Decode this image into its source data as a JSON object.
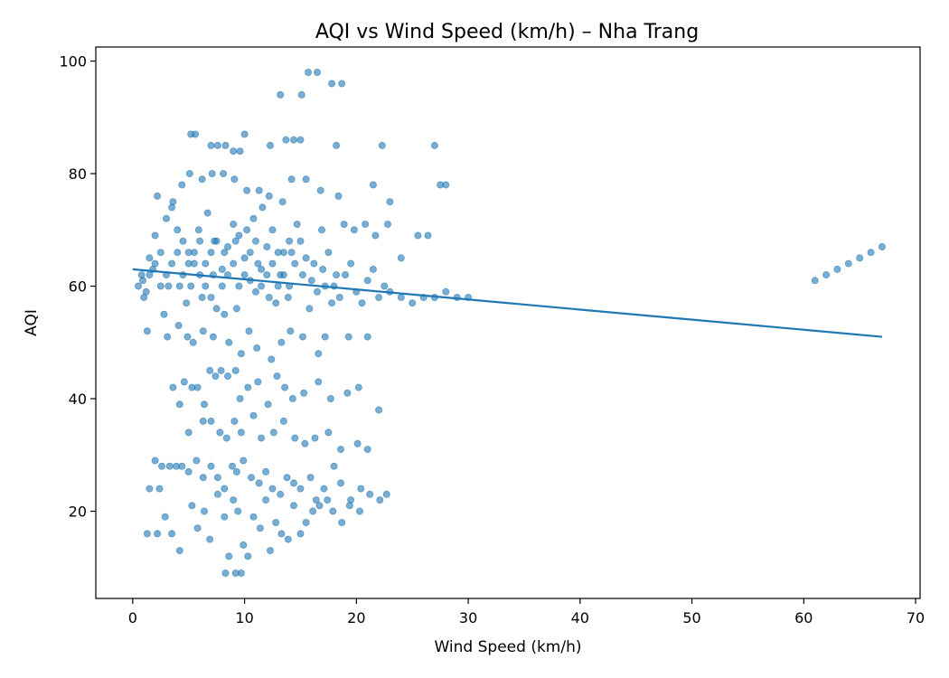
{
  "chart_data": {
    "type": "scatter",
    "title": "AQI vs Wind Speed (km/h) – Nha Trang",
    "xlabel": "Wind Speed (km/h)",
    "ylabel": "AQI",
    "xlim": [
      -3.3,
      70.4
    ],
    "ylim": [
      4.5,
      102.5
    ],
    "xticks": [
      0,
      10,
      20,
      30,
      40,
      50,
      60,
      70
    ],
    "yticks": [
      20,
      40,
      60,
      80,
      100
    ],
    "grid": false,
    "point_color": "#1f77b4",
    "series": [
      {
        "kind": "scatter",
        "points": [
          [
            0.5,
            60
          ],
          [
            1.0,
            58
          ],
          [
            0.8,
            62
          ],
          [
            1.5,
            65
          ],
          [
            2.0,
            69
          ],
          [
            1.2,
            59
          ],
          [
            0.9,
            61
          ],
          [
            1.8,
            63
          ],
          [
            2.5,
            66
          ],
          [
            3.0,
            72
          ],
          [
            3.5,
            74
          ],
          [
            4.0,
            70
          ],
          [
            4.5,
            68
          ],
          [
            5.0,
            66
          ],
          [
            5.5,
            64
          ],
          [
            6.0,
            62
          ],
          [
            6.5,
            60
          ],
          [
            7.0,
            58
          ],
          [
            7.5,
            56
          ],
          [
            8.0,
            63
          ],
          [
            8.5,
            67
          ],
          [
            9.0,
            71
          ],
          [
            9.5,
            69
          ],
          [
            10.0,
            65
          ],
          [
            10.5,
            61
          ],
          [
            11.0,
            59
          ],
          [
            11.5,
            63
          ],
          [
            12.0,
            67
          ],
          [
            12.5,
            70
          ],
          [
            13.0,
            66
          ],
          [
            13.5,
            62
          ],
          [
            14.0,
            60
          ],
          [
            14.5,
            64
          ],
          [
            15.0,
            68
          ],
          [
            15.5,
            65
          ],
          [
            16.0,
            61
          ],
          [
            16.5,
            59
          ],
          [
            17.0,
            63
          ],
          [
            17.5,
            66
          ],
          [
            18.0,
            60
          ],
          [
            18.5,
            58
          ],
          [
            19.0,
            62
          ],
          [
            19.5,
            64
          ],
          [
            20.0,
            59
          ],
          [
            20.5,
            57
          ],
          [
            21.0,
            61
          ],
          [
            21.5,
            63
          ],
          [
            22.0,
            58
          ],
          [
            22.5,
            60
          ],
          [
            23.0,
            59
          ],
          [
            24.0,
            58
          ],
          [
            25.0,
            57
          ],
          [
            26.0,
            58
          ],
          [
            27.0,
            58
          ],
          [
            28.0,
            59
          ],
          [
            29.0,
            58
          ],
          [
            30.0,
            58
          ],
          [
            3.2,
            60
          ],
          [
            4.8,
            57
          ],
          [
            5.9,
            70
          ],
          [
            6.7,
            73
          ],
          [
            7.3,
            68
          ],
          [
            8.2,
            55
          ],
          [
            9.3,
            56
          ],
          [
            10.8,
            72
          ],
          [
            11.6,
            74
          ],
          [
            12.8,
            57
          ],
          [
            13.9,
            58
          ],
          [
            14.7,
            71
          ],
          [
            15.8,
            56
          ],
          [
            16.9,
            70
          ],
          [
            17.8,
            57
          ],
          [
            18.9,
            71
          ],
          [
            19.8,
            70
          ],
          [
            20.8,
            71
          ],
          [
            21.7,
            69
          ],
          [
            22.8,
            71
          ],
          [
            2.2,
            76
          ],
          [
            3.6,
            75
          ],
          [
            4.4,
            78
          ],
          [
            5.1,
            80
          ],
          [
            6.2,
            79
          ],
          [
            7.1,
            80
          ],
          [
            8.1,
            80
          ],
          [
            9.1,
            79
          ],
          [
            10.2,
            77
          ],
          [
            11.3,
            77
          ],
          [
            12.2,
            76
          ],
          [
            13.4,
            75
          ],
          [
            14.2,
            79
          ],
          [
            15.5,
            79
          ],
          [
            16.8,
            77
          ],
          [
            18.4,
            76
          ],
          [
            21.5,
            78
          ],
          [
            23.0,
            75
          ],
          [
            5.2,
            87
          ],
          [
            5.6,
            87
          ],
          [
            7.0,
            85
          ],
          [
            7.6,
            85
          ],
          [
            8.3,
            85
          ],
          [
            9.0,
            84
          ],
          [
            9.6,
            84
          ],
          [
            10.0,
            87
          ],
          [
            12.3,
            85
          ],
          [
            13.7,
            86
          ],
          [
            14.4,
            86
          ],
          [
            15.0,
            86
          ],
          [
            18.2,
            85
          ],
          [
            22.3,
            85
          ],
          [
            27.0,
            85
          ],
          [
            13.2,
            94
          ],
          [
            15.1,
            94
          ],
          [
            15.7,
            98
          ],
          [
            16.5,
            98
          ],
          [
            17.8,
            96
          ],
          [
            18.7,
            96
          ],
          [
            1.3,
            52
          ],
          [
            2.8,
            55
          ],
          [
            3.1,
            51
          ],
          [
            4.1,
            53
          ],
          [
            4.9,
            51
          ],
          [
            5.4,
            50
          ],
          [
            6.3,
            52
          ],
          [
            7.2,
            51
          ],
          [
            8.6,
            50
          ],
          [
            9.7,
            48
          ],
          [
            10.4,
            52
          ],
          [
            11.1,
            49
          ],
          [
            12.4,
            47
          ],
          [
            13.3,
            50
          ],
          [
            14.1,
            52
          ],
          [
            15.2,
            51
          ],
          [
            16.6,
            48
          ],
          [
            17.2,
            51
          ],
          [
            19.3,
            51
          ],
          [
            21.0,
            51
          ],
          [
            24.0,
            65
          ],
          [
            25.5,
            69
          ],
          [
            26.4,
            69
          ],
          [
            27.5,
            78
          ],
          [
            28.0,
            78
          ],
          [
            3.6,
            42
          ],
          [
            4.2,
            39
          ],
          [
            4.6,
            43
          ],
          [
            5.3,
            42
          ],
          [
            5.8,
            42
          ],
          [
            6.4,
            39
          ],
          [
            6.9,
            45
          ],
          [
            7.4,
            44
          ],
          [
            7.9,
            45
          ],
          [
            8.5,
            44
          ],
          [
            9.2,
            45
          ],
          [
            9.6,
            40
          ],
          [
            10.3,
            42
          ],
          [
            11.2,
            43
          ],
          [
            12.1,
            39
          ],
          [
            12.9,
            44
          ],
          [
            13.6,
            42
          ],
          [
            14.3,
            40
          ],
          [
            15.3,
            41
          ],
          [
            16.6,
            43
          ],
          [
            17.7,
            40
          ],
          [
            19.2,
            41
          ],
          [
            20.2,
            42
          ],
          [
            22.0,
            38
          ],
          [
            5.0,
            34
          ],
          [
            6.3,
            36
          ],
          [
            7.0,
            36
          ],
          [
            7.8,
            34
          ],
          [
            8.4,
            33
          ],
          [
            9.1,
            36
          ],
          [
            9.7,
            34
          ],
          [
            10.8,
            37
          ],
          [
            11.5,
            33
          ],
          [
            12.6,
            34
          ],
          [
            13.5,
            36
          ],
          [
            14.5,
            33
          ],
          [
            15.4,
            32
          ],
          [
            16.3,
            33
          ],
          [
            17.5,
            34
          ],
          [
            18.6,
            31
          ],
          [
            20.1,
            32
          ],
          [
            21.0,
            31
          ],
          [
            2.0,
            29
          ],
          [
            2.6,
            28
          ],
          [
            3.3,
            28
          ],
          [
            3.9,
            28
          ],
          [
            4.4,
            28
          ],
          [
            5.0,
            27
          ],
          [
            5.7,
            29
          ],
          [
            6.3,
            26
          ],
          [
            7.0,
            28
          ],
          [
            7.6,
            26
          ],
          [
            8.2,
            24
          ],
          [
            8.9,
            28
          ],
          [
            9.3,
            27
          ],
          [
            9.9,
            29
          ],
          [
            10.6,
            26
          ],
          [
            11.3,
            25
          ],
          [
            11.9,
            27
          ],
          [
            12.5,
            24
          ],
          [
            13.2,
            23
          ],
          [
            13.8,
            26
          ],
          [
            14.4,
            25
          ],
          [
            15.0,
            24
          ],
          [
            15.9,
            26
          ],
          [
            16.4,
            22
          ],
          [
            17.1,
            24
          ],
          [
            18.0,
            28
          ],
          [
            18.6,
            25
          ],
          [
            19.5,
            22
          ],
          [
            20.4,
            24
          ],
          [
            21.2,
            23
          ],
          [
            22.1,
            22
          ],
          [
            22.7,
            23
          ],
          [
            1.5,
            24
          ],
          [
            2.4,
            24
          ],
          [
            2.9,
            19
          ],
          [
            3.5,
            16
          ],
          [
            4.2,
            13
          ],
          [
            5.3,
            21
          ],
          [
            5.8,
            17
          ],
          [
            6.4,
            20
          ],
          [
            6.9,
            15
          ],
          [
            7.6,
            23
          ],
          [
            8.2,
            19
          ],
          [
            8.6,
            12
          ],
          [
            9.0,
            22
          ],
          [
            9.4,
            20
          ],
          [
            9.9,
            14
          ],
          [
            10.3,
            12
          ],
          [
            10.8,
            19
          ],
          [
            11.4,
            17
          ],
          [
            11.9,
            22
          ],
          [
            12.3,
            13
          ],
          [
            12.8,
            18
          ],
          [
            13.3,
            16
          ],
          [
            13.9,
            15
          ],
          [
            14.4,
            21
          ],
          [
            15.0,
            16
          ],
          [
            15.5,
            18
          ],
          [
            16.1,
            20
          ],
          [
            16.7,
            21
          ],
          [
            17.4,
            22
          ],
          [
            17.9,
            20
          ],
          [
            18.7,
            18
          ],
          [
            19.4,
            21
          ],
          [
            20.3,
            20
          ],
          [
            8.3,
            9
          ],
          [
            9.2,
            9
          ],
          [
            9.7,
            9
          ],
          [
            1.3,
            16
          ],
          [
            2.2,
            16
          ],
          [
            5.0,
            64
          ],
          [
            5.5,
            66
          ],
          [
            6.0,
            68
          ],
          [
            6.5,
            64
          ],
          [
            7.0,
            66
          ],
          [
            7.5,
            68
          ],
          [
            8.0,
            60
          ],
          [
            8.5,
            62
          ],
          [
            9.0,
            64
          ],
          [
            9.5,
            60
          ],
          [
            10.0,
            62
          ],
          [
            10.5,
            66
          ],
          [
            11.0,
            68
          ],
          [
            11.5,
            60
          ],
          [
            12.0,
            62
          ],
          [
            12.5,
            64
          ],
          [
            13.0,
            60
          ],
          [
            13.5,
            66
          ],
          [
            14.0,
            68
          ],
          [
            4.0,
            66
          ],
          [
            4.5,
            62
          ],
          [
            3.5,
            64
          ],
          [
            3.0,
            62
          ],
          [
            2.5,
            60
          ],
          [
            2.0,
            64
          ],
          [
            1.5,
            62
          ],
          [
            4.2,
            60
          ],
          [
            5.2,
            60
          ],
          [
            6.2,
            58
          ],
          [
            7.2,
            62
          ],
          [
            8.2,
            66
          ],
          [
            9.2,
            68
          ],
          [
            10.2,
            70
          ],
          [
            11.2,
            64
          ],
          [
            12.2,
            58
          ],
          [
            13.2,
            62
          ],
          [
            14.2,
            66
          ],
          [
            15.2,
            62
          ],
          [
            16.2,
            64
          ],
          [
            17.2,
            60
          ],
          [
            18.2,
            62
          ],
          [
            61.0,
            61
          ],
          [
            62.0,
            62
          ],
          [
            63.0,
            63
          ],
          [
            64.0,
            64
          ],
          [
            65.0,
            65
          ],
          [
            66.0,
            66
          ],
          [
            67.0,
            67
          ]
        ]
      },
      {
        "kind": "trend-line",
        "x": [
          0,
          67
        ],
        "y": [
          63,
          51
        ]
      }
    ]
  }
}
